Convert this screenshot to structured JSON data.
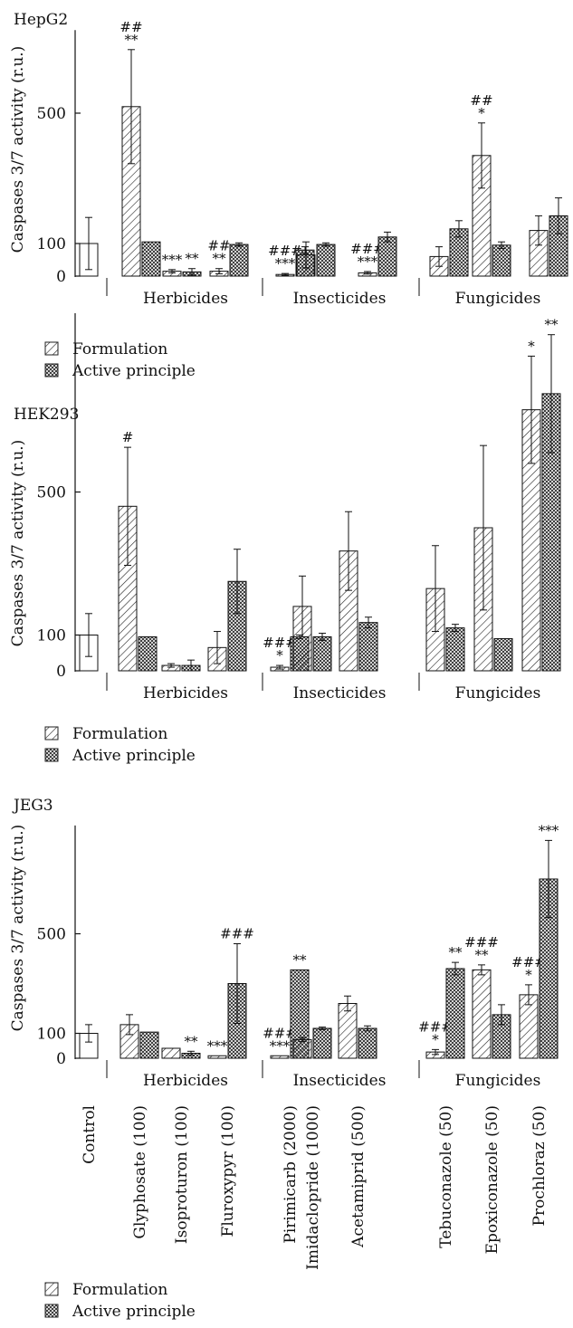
{
  "chart_data": [
    {
      "type": "bar",
      "title": "HepG2",
      "ylabel": "Caspases 3/7 activity (r.u.)",
      "yticks": [
        "0",
        "100",
        "500"
      ],
      "groups": [
        "Herbicides",
        "Insecticides",
        "Fungicides"
      ],
      "control": {
        "label": "Control",
        "value": 100,
        "error": 80
      },
      "categories": [
        "Glyphosate (100)",
        "Isoproturon (100)",
        "Fluroxypyr (100)",
        "Pirimicarb (2000)",
        "Imidaclopride (1000)",
        "Acetamiprid (500)",
        "Tebuconazole (50)",
        "Epoxiconazole (50)",
        "Prochloraz (50)"
      ],
      "series": [
        {
          "name": "Formulation",
          "values": [
            520,
            15,
            15,
            5,
            65,
            10,
            60,
            370,
            140
          ],
          "errors": [
            175,
            5,
            8,
            3,
            40,
            4,
            30,
            100,
            45
          ],
          "sig": [
            "**|##",
            "***",
            "**|##",
            "***|###",
            "",
            "***|###",
            "",
            "*|##",
            ""
          ]
        },
        {
          "name": "Active principle",
          "values": [
            105,
            13,
            97,
            80,
            97,
            120,
            145,
            95,
            185
          ],
          "errors": [
            0,
            10,
            5,
            10,
            5,
            15,
            25,
            10,
            55
          ],
          "sig": [
            "",
            "**",
            "",
            "",
            "",
            "",
            "",
            "",
            ""
          ]
        }
      ]
    },
    {
      "type": "bar",
      "title": "HEK293",
      "ylabel": "Caspases 3/7 activity (r.u.)",
      "yticks": [
        "0",
        "100",
        "500"
      ],
      "groups": [
        "Herbicides",
        "Insecticides",
        "Fungicides"
      ],
      "control": {
        "label": "Control",
        "value": 100,
        "error": 60
      },
      "categories": [
        "Glyphosate (100)",
        "Isoproturon (100)",
        "Fluroxypyr (100)",
        "Pirimicarb (2000)",
        "Imidaclopride (1000)",
        "Acetamiprid (500)",
        "Tebuconazole (50)",
        "Epoxiconazole (50)",
        "Prochloraz (50)"
      ],
      "series": [
        {
          "name": "Formulation",
          "values": [
            460,
            15,
            65,
            10,
            180,
            335,
            230,
            400,
            730
          ],
          "errors": [
            165,
            5,
            45,
            5,
            85,
            110,
            120,
            230,
            150
          ],
          "sig": [
            "#",
            "",
            "",
            "*|###",
            "",
            "",
            "",
            "",
            "*"
          ]
        },
        {
          "name": "Active principle",
          "values": [
            95,
            15,
            250,
            95,
            95,
            135,
            120,
            90,
            775
          ],
          "errors": [
            0,
            15,
            90,
            5,
            10,
            15,
            10,
            0,
            165
          ],
          "sig": [
            "",
            "",
            "",
            "",
            "",
            "",
            "",
            "",
            "**"
          ]
        }
      ]
    },
    {
      "type": "bar",
      "title": "JEG3",
      "ylabel": "Caspases 3/7 activity (r.u.)",
      "yticks": [
        "0",
        "100",
        "500"
      ],
      "groups": [
        "Herbicides",
        "Insecticides",
        "Fungicides"
      ],
      "control": {
        "label": "Control",
        "value": 100,
        "error": 35
      },
      "categories": [
        "Glyphosate (100)",
        "Isoproturon (100)",
        "Fluroxypyr (100)",
        "Pirimicarb (2000)",
        "Imidaclopride (1000)",
        "Acetamiprid (500)",
        "Tebuconazole (50)",
        "Epoxiconazole (50)",
        "Prochloraz (50)"
      ],
      "series": [
        {
          "name": "Formulation",
          "values": [
            135,
            40,
            10,
            10,
            75,
            220,
            25,
            355,
            255
          ],
          "errors": [
            40,
            0,
            0,
            0,
            8,
            30,
            10,
            20,
            40
          ],
          "sig": [
            "",
            "",
            "***",
            "***|###",
            "",
            "",
            "*|###",
            "**|###",
            "*|###"
          ]
        },
        {
          "name": "Active principle",
          "values": [
            105,
            20,
            300,
            355,
            120,
            120,
            360,
            175,
            720
          ],
          "errors": [
            0,
            8,
            160,
            0,
            5,
            10,
            25,
            40,
            155
          ],
          "sig": [
            "",
            "**",
            "###",
            "**",
            "",
            "",
            "**",
            "",
            "***"
          ]
        }
      ]
    }
  ]
}
